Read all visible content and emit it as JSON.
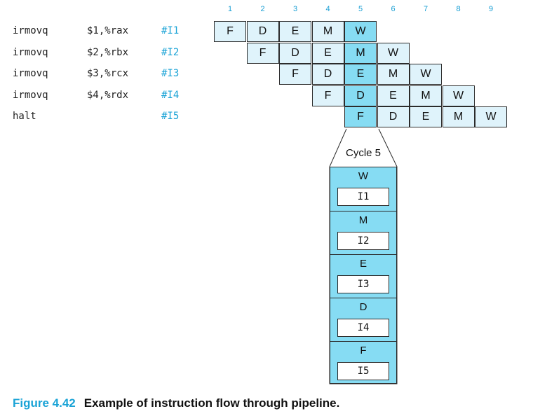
{
  "cycles": [
    "1",
    "2",
    "3",
    "4",
    "5",
    "6",
    "7",
    "8",
    "9"
  ],
  "instructions": [
    {
      "mnemonic": "irmovq",
      "operands": "$1,%rax",
      "label": "#I1",
      "start": 1
    },
    {
      "mnemonic": "irmovq",
      "operands": "$2,%rbx",
      "label": "#I2",
      "start": 2
    },
    {
      "mnemonic": "irmovq",
      "operands": "$3,%rcx",
      "label": "#I3",
      "start": 3
    },
    {
      "mnemonic": "irmovq",
      "operands": "$4,%rdx",
      "label": "#I4",
      "start": 4
    },
    {
      "mnemonic": "halt",
      "operands": "",
      "label": "#I5",
      "start": 5
    }
  ],
  "stages": [
    "F",
    "D",
    "E",
    "M",
    "W"
  ],
  "highlight_cycle": 5,
  "snapshot": {
    "title": "Cycle 5",
    "rows": [
      {
        "stage": "W",
        "instr": "I1"
      },
      {
        "stage": "M",
        "instr": "I2"
      },
      {
        "stage": "E",
        "instr": "I3"
      },
      {
        "stage": "D",
        "instr": "I4"
      },
      {
        "stage": "F",
        "instr": "I5"
      }
    ]
  },
  "caption": {
    "number": "Figure 4.42",
    "text": "Example of instruction flow through pipeline."
  }
}
